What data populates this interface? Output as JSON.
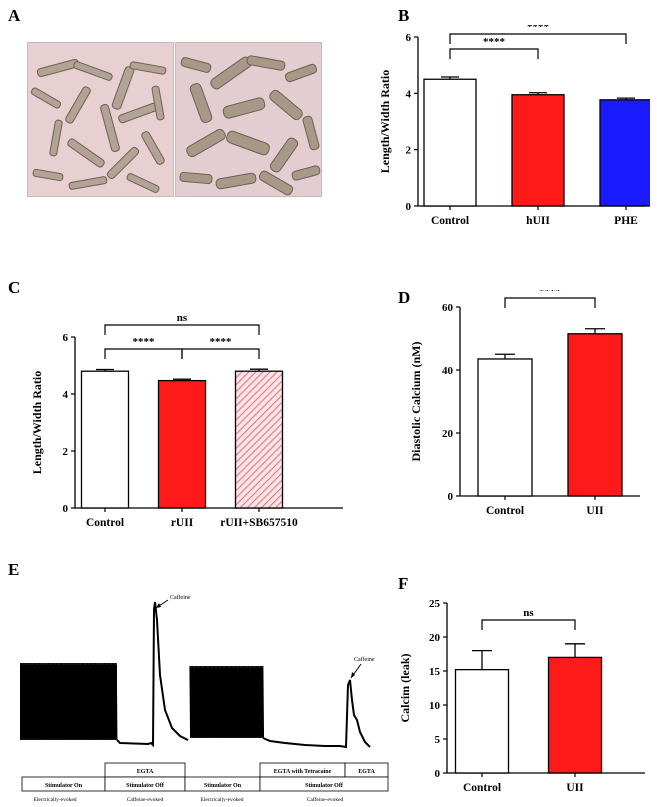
{
  "panels": {
    "A": "A",
    "B": "B",
    "C": "C",
    "D": "D",
    "E": "E",
    "F": "F"
  },
  "colors": {
    "control": "#ffffff",
    "hUII": "#ff1a1a",
    "PHE": "#1a1aff",
    "rUII": "#ff1a1a",
    "hatch": "#e07a86",
    "photo_bg": "#e8cfd2",
    "cell": "#b3a394"
  },
  "chart_data": [
    {
      "id": "B",
      "type": "bar",
      "categories": [
        "Control",
        "hUII",
        "PHE"
      ],
      "values": [
        4.5,
        3.95,
        3.77
      ],
      "errors": [
        0.08,
        0.07,
        0.06
      ],
      "ylabel": "Length/Width Ratio",
      "ylim": [
        0,
        6
      ],
      "yticks": [
        0,
        2,
        4,
        6
      ],
      "bar_colors": [
        "#ffffff",
        "#ff1a1a",
        "#1a1aff"
      ],
      "grid": false,
      "significance": [
        {
          "from": 0,
          "to": 1,
          "label": "****"
        },
        {
          "from": 0,
          "to": 2,
          "label": "****"
        }
      ]
    },
    {
      "id": "C",
      "type": "bar",
      "categories": [
        "Control",
        "rUII",
        "rUII+SB657510"
      ],
      "values": [
        4.8,
        4.47,
        4.8
      ],
      "errors": [
        0.06,
        0.05,
        0.07
      ],
      "ylabel": "Length/Width Ratio",
      "ylim": [
        0,
        6
      ],
      "yticks": [
        0,
        2,
        4,
        6
      ],
      "bar_colors": [
        "#ffffff",
        "#ff1a1a",
        "hatch"
      ],
      "grid": false,
      "significance": [
        {
          "from": 0,
          "to": 1,
          "label": "****"
        },
        {
          "from": 1,
          "to": 2,
          "label": "****"
        },
        {
          "from": 0,
          "to": 2,
          "label": "ns"
        }
      ]
    },
    {
      "id": "D",
      "type": "bar",
      "categories": [
        "Control",
        "UII"
      ],
      "values": [
        43.5,
        51.5
      ],
      "errors": [
        1.5,
        1.6
      ],
      "ylabel": "Diastolic Calcium (nM)",
      "ylim": [
        0,
        60
      ],
      "yticks": [
        0,
        20,
        40,
        60
      ],
      "bar_colors": [
        "#ffffff",
        "#ff1a1a"
      ],
      "grid": false,
      "significance": [
        {
          "from": 0,
          "to": 1,
          "label": "****"
        }
      ]
    },
    {
      "id": "F",
      "type": "bar",
      "categories": [
        "Control",
        "UII"
      ],
      "values": [
        15.2,
        17.0
      ],
      "errors": [
        2.8,
        2.0
      ],
      "ylabel": "Calcim (leak)",
      "ylim": [
        0,
        25
      ],
      "yticks": [
        0,
        5,
        10,
        15,
        20,
        25
      ],
      "bar_colors": [
        "#ffffff",
        "#ff1a1a"
      ],
      "grid": false,
      "significance": [
        {
          "from": 0,
          "to": 1,
          "label": "ns"
        }
      ]
    },
    {
      "id": "E",
      "type": "line",
      "annotations": [
        "Caffeine",
        "Caffeine"
      ],
      "protocol_top": [
        "EGTA",
        "EGTA with Tetracaine",
        "EGTA"
      ],
      "protocol_mid": [
        "Stimulator On",
        "Stimulator Off",
        "Stimulator On",
        "Stimulator Off"
      ],
      "protocol_bottom": [
        "Electrically-evoked",
        "Caffeine-evoked",
        "Electrically-evoked",
        "Caffeine-evoked"
      ]
    }
  ]
}
